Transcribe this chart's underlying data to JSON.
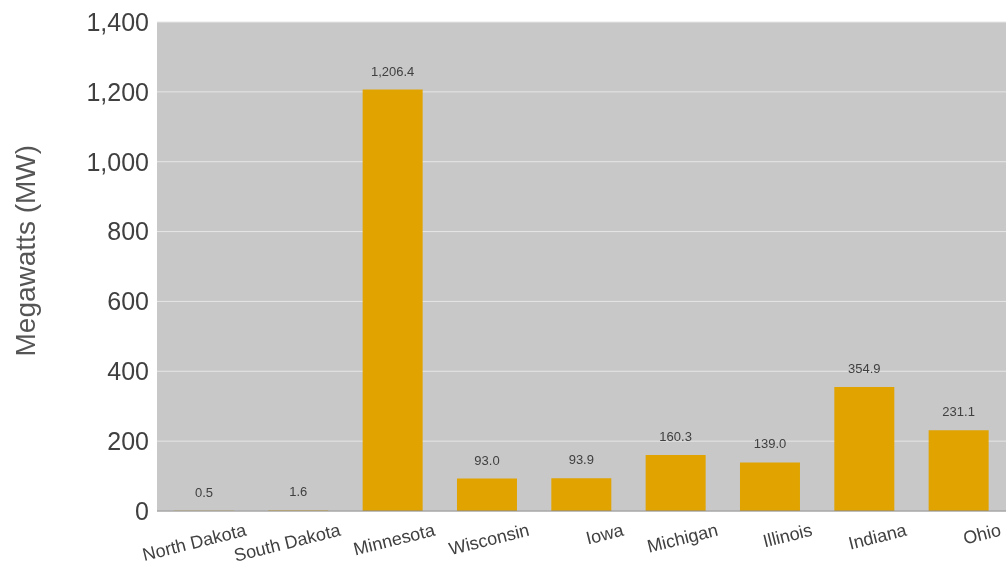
{
  "chart_data": {
    "type": "bar",
    "ylabel": "Megawatts (MW)",
    "categories": [
      "North Dakota",
      "South Dakota",
      "Minnesota",
      "Wisconsin",
      "Iowa",
      "Michigan",
      "Illinois",
      "Indiana",
      "Ohio"
    ],
    "values": [
      0.5,
      1.6,
      1206.4,
      93.0,
      93.9,
      160.3,
      139.0,
      354.9,
      231.1
    ],
    "value_labels": [
      "0.5",
      "1.6",
      "1,206.4",
      "93.0",
      "93.9",
      "160.3",
      "139.0",
      "354.9",
      "231.1"
    ],
    "color": "#e0a300",
    "ylim": [
      0,
      1400
    ],
    "yticks": [
      0,
      200,
      400,
      600,
      800,
      {
        "value": 1000,
        "label": "1,000"
      },
      {
        "value": 1200,
        "label": "1,200"
      },
      {
        "value": 1400,
        "label": "1,400"
      }
    ],
    "grid": "y"
  }
}
